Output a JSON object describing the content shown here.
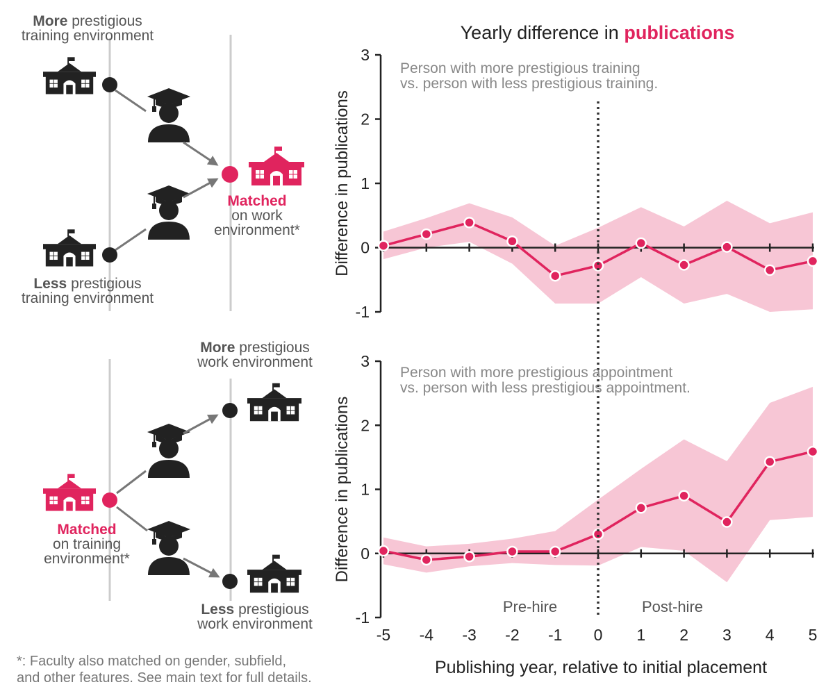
{
  "title": {
    "prefix": "Yearly difference in ",
    "highlight": "publications"
  },
  "colors": {
    "accent": "#e0245e",
    "band": "#f7c6d5",
    "dark": "#222222",
    "gray": "#888888"
  },
  "diagram_top": {
    "source_high": {
      "bold": "More",
      "rest": " prestigious",
      "line2": "training environment"
    },
    "source_low": {
      "bold": "Less",
      "rest": " prestigious",
      "line2": "training environment"
    },
    "target": {
      "bold": "Matched",
      "line2": "on work",
      "line3": "environment*"
    },
    "icons": [
      "school-icon",
      "graduate-icon"
    ]
  },
  "diagram_bottom": {
    "source": {
      "bold": "Matched",
      "line2": "on training",
      "line3": "environment*"
    },
    "target_high": {
      "bold": "More",
      "rest": " prestigious",
      "line2": "work environment"
    },
    "target_low": {
      "bold": "Less",
      "rest": " prestigious",
      "line2": "work environment"
    }
  },
  "footnote": {
    "line1": "*: Faculty also matched on gender, subfield,",
    "line2": "and other features. See main text for full details."
  },
  "chart_data": [
    {
      "type": "line",
      "ylabel": "Difference in publications",
      "annotation": [
        "Person with more prestigious training",
        "vs. person with less prestigious training."
      ],
      "x": [
        -5,
        -4,
        -3,
        -2,
        -1,
        0,
        1,
        2,
        3,
        4,
        5
      ],
      "values": [
        0.03,
        0.21,
        0.39,
        0.1,
        -0.44,
        -0.28,
        0.07,
        -0.27,
        0.01,
        -0.35,
        -0.21
      ],
      "lower": [
        -0.18,
        0.0,
        0.09,
        -0.25,
        -0.87,
        -0.87,
        -0.46,
        -0.87,
        -0.72,
        -1.0,
        -0.96
      ],
      "upper": [
        0.25,
        0.46,
        0.69,
        0.47,
        0.03,
        0.31,
        0.63,
        0.33,
        0.73,
        0.38,
        0.55
      ],
      "ylim": [
        -1,
        3
      ],
      "yticks": [
        "3",
        "2",
        "1",
        "0",
        "-1"
      ],
      "ytick_values": [
        3,
        2,
        1,
        0,
        -1
      ]
    },
    {
      "type": "line",
      "ylabel": "Difference in publications",
      "annotation": [
        "Person with more prestigious appointment",
        "vs. person with less prestigious appointment."
      ],
      "x": [
        -5,
        -4,
        -3,
        -2,
        -1,
        0,
        1,
        2,
        3,
        4,
        5
      ],
      "values": [
        0.04,
        -0.1,
        -0.05,
        0.03,
        0.03,
        0.3,
        0.71,
        0.9,
        0.49,
        1.43,
        1.59
      ],
      "lower": [
        -0.17,
        -0.3,
        -0.2,
        -0.15,
        -0.18,
        -0.19,
        0.1,
        0.04,
        -0.45,
        0.52,
        0.57
      ],
      "upper": [
        0.25,
        0.11,
        0.15,
        0.23,
        0.35,
        0.84,
        1.32,
        1.78,
        1.44,
        2.35,
        2.6
      ],
      "ylim": [
        -1,
        3
      ],
      "yticks": [
        "3",
        "2",
        "1",
        "0",
        "-1"
      ],
      "ytick_values": [
        3,
        2,
        1,
        0,
        -1
      ]
    }
  ],
  "xaxis": {
    "label": "Publishing year, relative to initial placement",
    "ticks": [
      "-5",
      "-4",
      "-3",
      "-2",
      "-1",
      "0",
      "1",
      "2",
      "3",
      "4",
      "5"
    ],
    "pre_label": "Pre-hire",
    "post_label": "Post-hire"
  }
}
